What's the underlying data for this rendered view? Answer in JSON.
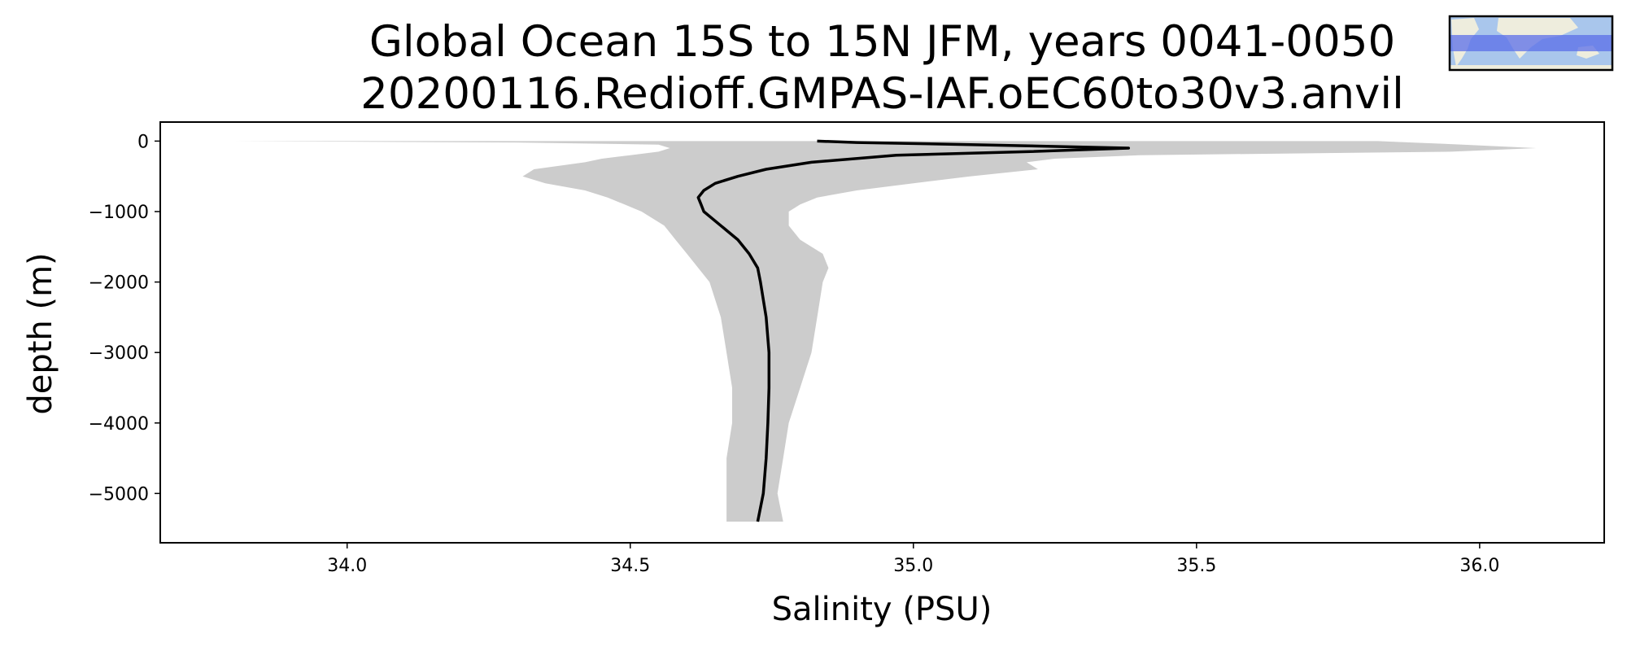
{
  "title_line1": "Global Ocean 15S to 15N JFM, years 0041-0050",
  "title_line2": "20200116.Redioff.GMPAS-IAF.oEC60to30v3.anvil",
  "chart_data": {
    "type": "line",
    "xlabel": "Salinity (PSU)",
    "ylabel": "depth (m)",
    "xlim": [
      33.67,
      36.22
    ],
    "ylim": [
      -5700,
      270
    ],
    "xticks": [
      34.0,
      34.5,
      35.0,
      35.5,
      36.0
    ],
    "xtick_labels": [
      "34.0",
      "34.5",
      "35.0",
      "35.5",
      "36.0"
    ],
    "yticks": [
      0,
      -1000,
      -2000,
      -3000,
      -4000,
      -5000
    ],
    "ytick_labels": [
      "0",
      "−1000",
      "−2000",
      "−3000",
      "−4000",
      "−5000"
    ],
    "grid": false,
    "mean_profile": {
      "color": "#000000",
      "depth": [
        0,
        -20,
        -50,
        -100,
        -150,
        -200,
        -300,
        -400,
        -500,
        -600,
        -700,
        -800,
        -900,
        -1000,
        -1200,
        -1400,
        -1600,
        -1800,
        -2000,
        -2500,
        -3000,
        -3500,
        -4000,
        -4500,
        -5000,
        -5400
      ],
      "salinity": [
        34.83,
        34.9,
        35.1,
        35.38,
        35.2,
        34.97,
        34.82,
        34.74,
        34.69,
        34.65,
        34.63,
        34.62,
        34.625,
        34.63,
        34.66,
        34.69,
        34.71,
        34.725,
        34.73,
        34.74,
        34.745,
        34.745,
        34.743,
        34.74,
        34.735,
        34.725
      ]
    },
    "spread_band": {
      "color": "#cccccc",
      "depth": [
        0,
        -20,
        -50,
        -100,
        -150,
        -200,
        -250,
        -300,
        -400,
        -500,
        -600,
        -700,
        -800,
        -900,
        -1000,
        -1200,
        -1400,
        -1600,
        -1800,
        -2000,
        -2500,
        -3000,
        -3500,
        -4000,
        -4500,
        -5000,
        -5400
      ],
      "min_salinity": [
        33.8,
        34.3,
        34.55,
        34.57,
        34.55,
        34.5,
        34.45,
        34.42,
        34.33,
        34.31,
        34.35,
        34.42,
        34.46,
        34.49,
        34.52,
        34.56,
        34.58,
        34.6,
        34.62,
        34.64,
        34.66,
        34.67,
        34.68,
        34.68,
        34.67,
        34.67,
        34.67
      ],
      "max_salinity": [
        35.82,
        35.88,
        35.97,
        36.1,
        35.95,
        35.4,
        35.25,
        35.2,
        35.22,
        35.1,
        35.0,
        34.9,
        34.83,
        34.8,
        34.78,
        34.78,
        34.8,
        34.84,
        34.85,
        34.84,
        34.83,
        34.82,
        34.8,
        34.78,
        34.77,
        34.76,
        34.77
      ]
    }
  },
  "inset_map": {
    "name": "region inset map",
    "ocean_color": "#a9c6ec",
    "land_color": "#eeeddd",
    "region_color": "#5b6ee8",
    "region_lat_range": [
      -15,
      15
    ]
  }
}
